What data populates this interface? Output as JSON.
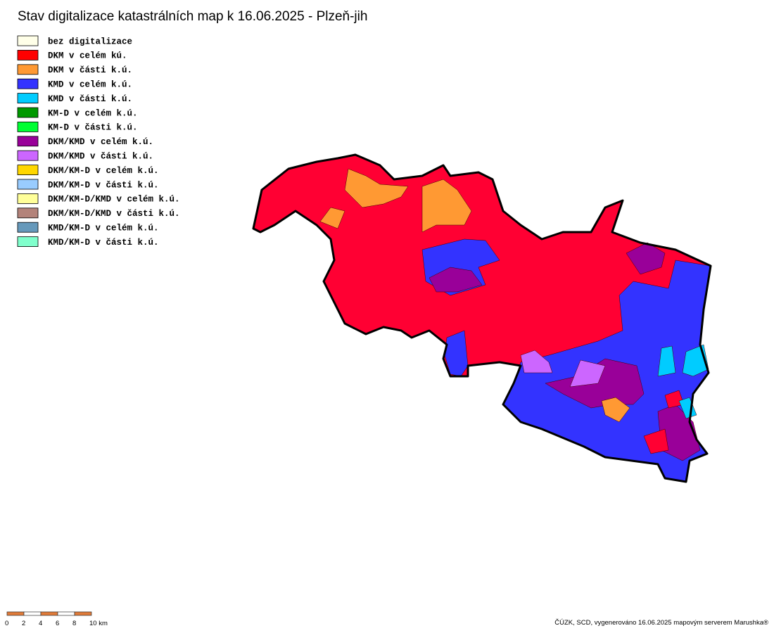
{
  "header": {
    "title": "Stav digitalizace katastrálních map k 16.06.2025 - Plzeň-jih"
  },
  "legend": [
    {
      "label": "bez digitalizace",
      "color": "#ffffe8"
    },
    {
      "label": "DKM v celém kú.",
      "color": "#ff0000"
    },
    {
      "label": "DKM v části k.ú.",
      "color": "#ff9933"
    },
    {
      "label": "KMD v celém k.ú.",
      "color": "#3333ff"
    },
    {
      "label": "KMD v části k.ú.",
      "color": "#00ccff"
    },
    {
      "label": "KM-D v celém k.ú.",
      "color": "#009900"
    },
    {
      "label": "KM-D v části k.ú.",
      "color": "#00ff33"
    },
    {
      "label": "DKM/KMD v celém k.ú.",
      "color": "#990099"
    },
    {
      "label": "DKM/KMD v části k.ú.",
      "color": "#cc66ff"
    },
    {
      "label": "DKM/KM-D v celém k.ú.",
      "color": "#ffd700"
    },
    {
      "label": "DKM/KM-D v části k.ú.",
      "color": "#99ccff"
    },
    {
      "label": "DKM/KM-D/KMD v celém k.ú.",
      "color": "#ffff99"
    },
    {
      "label": "DKM/KM-D/KMD v části k.ú.",
      "color": "#b3837a"
    },
    {
      "label": "KMD/KM-D v celém k.ú.",
      "color": "#6699bb"
    },
    {
      "label": "KMD/KM-D v části k.ú.",
      "color": "#80ffcc"
    }
  ],
  "scale_bar": {
    "labels": [
      "0",
      "2",
      "4",
      "6",
      "8",
      "10 km"
    ]
  },
  "footer": {
    "credit": "ČÚZK, SCD, vygenerováno 16.06.2025 mapovým serverem Marushka®"
  }
}
